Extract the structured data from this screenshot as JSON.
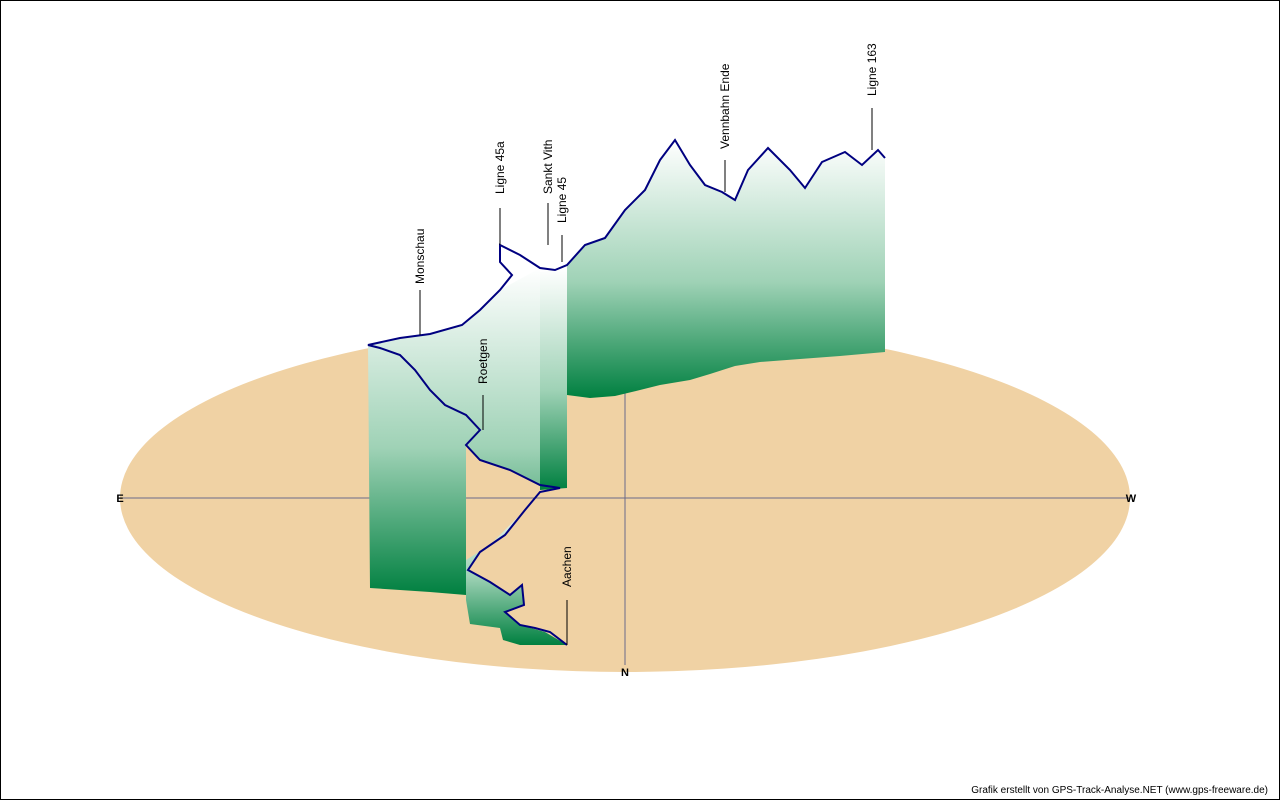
{
  "compass": {
    "east": "E",
    "west": "W",
    "north": "N"
  },
  "waypoints": [
    {
      "label": "Monschau"
    },
    {
      "label": "Ligne 45a"
    },
    {
      "label": "Sankt Vith"
    },
    {
      "label": "Ligne 45"
    },
    {
      "label": "Vennbahn Ende"
    },
    {
      "label": "Ligne 163"
    },
    {
      "label": "Roetgen"
    },
    {
      "label": "Aachen"
    }
  ],
  "credit": "Grafik erstellt von GPS-Track-Analyse.NET (www.gps-freeware.de)"
}
